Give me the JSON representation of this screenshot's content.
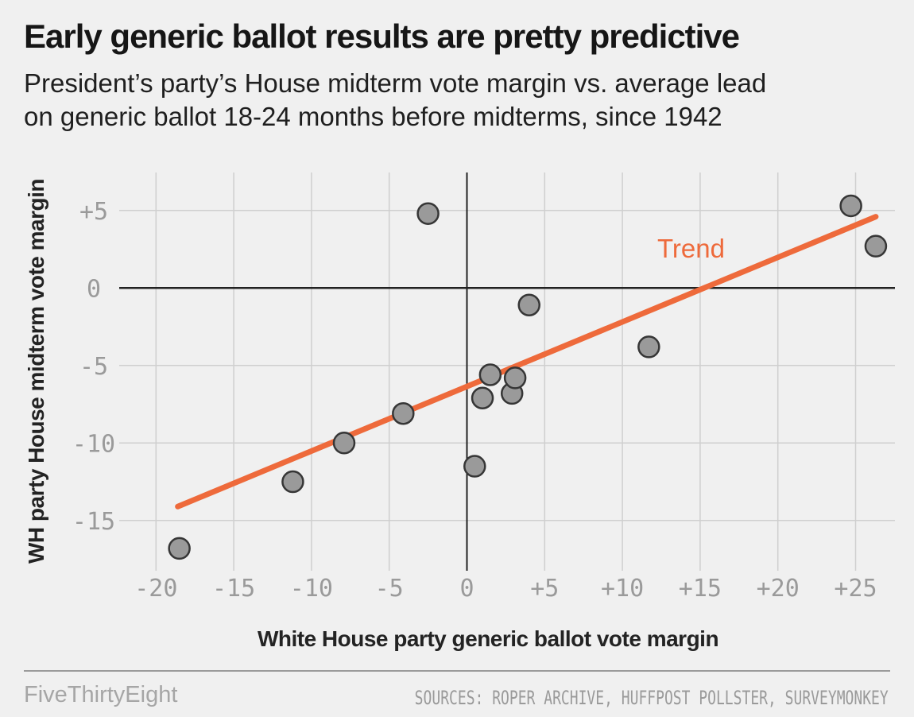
{
  "header": {
    "title": "Early generic ballot results are pretty predictive",
    "subtitle_line1": "President’s party’s House midterm vote margin vs. average lead",
    "subtitle_line2": "on generic ballot 18-24 months before midterms, since 1942"
  },
  "chart_data": {
    "type": "scatter",
    "title": "Early generic ballot results are pretty predictive",
    "xlabel": "White House party generic ballot vote margin",
    "ylabel": "WH party House midterm vote margin",
    "xlim": [
      -22.4,
      27.5
    ],
    "ylim": [
      -18.2,
      7.5
    ],
    "grid": true,
    "x_ticks": [
      {
        "v": -20,
        "label": "-20"
      },
      {
        "v": -15,
        "label": "-15"
      },
      {
        "v": -10,
        "label": "-10"
      },
      {
        "v": -5,
        "label": "-5"
      },
      {
        "v": 0,
        "label": "0"
      },
      {
        "v": 5,
        "label": "+5"
      },
      {
        "v": 10,
        "label": "+10"
      },
      {
        "v": 15,
        "label": "+15"
      },
      {
        "v": 20,
        "label": "+20"
      },
      {
        "v": 25,
        "label": "+25"
      }
    ],
    "y_ticks": [
      {
        "v": 5,
        "label": "+5"
      },
      {
        "v": 0,
        "label": "0"
      },
      {
        "v": -5,
        "label": "-5"
      },
      {
        "v": -10,
        "label": "-10"
      },
      {
        "v": -15,
        "label": "-15"
      }
    ],
    "points": [
      {
        "x": -18.5,
        "y": -16.8
      },
      {
        "x": -11.2,
        "y": -12.5
      },
      {
        "x": -7.9,
        "y": -10.0
      },
      {
        "x": -4.1,
        "y": -8.1
      },
      {
        "x": -2.5,
        "y": 4.8
      },
      {
        "x": 0.5,
        "y": -11.5
      },
      {
        "x": 1.0,
        "y": -7.1
      },
      {
        "x": 1.5,
        "y": -5.6
      },
      {
        "x": 2.9,
        "y": -6.8
      },
      {
        "x": 3.1,
        "y": -5.8
      },
      {
        "x": 4.0,
        "y": -1.1
      },
      {
        "x": 11.7,
        "y": -3.8
      },
      {
        "x": 24.7,
        "y": 5.3
      },
      {
        "x": 26.3,
        "y": 2.7
      }
    ],
    "trend": {
      "label": "Trend",
      "from": {
        "x": -18.6,
        "y": -14.1
      },
      "to": {
        "x": 26.3,
        "y": 4.6
      }
    },
    "colors": {
      "background": "#f0f0f0",
      "grid": "#cfcfcf",
      "axis": "#222222",
      "tick_text": "#9a9a9a",
      "point_fill": "#9a9a9a",
      "point_stroke": "#363636",
      "trend": "#ee6a3b"
    },
    "legend_position": "none"
  },
  "footer": {
    "brand": "FiveThirtyEight",
    "sources": "SOURCES: ROPER ARCHIVE, HUFFPOST POLLSTER, SURVEYMONKEY"
  }
}
